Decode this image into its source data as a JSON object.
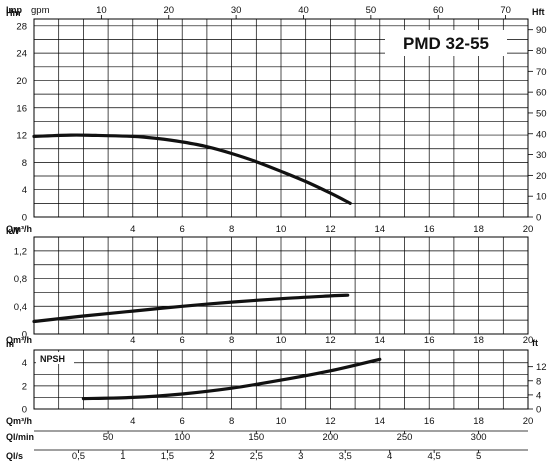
{
  "model": "PMD 32-55",
  "chart_data": [
    {
      "type": "line",
      "panel": "head",
      "ylabel_left": "Hm",
      "ylabel_right": "Hft",
      "xlabel": "Qm³/h",
      "xlim": [
        0,
        20
      ],
      "ylim_left": [
        0,
        29
      ],
      "ylim_right": [
        0,
        95.1
      ],
      "top_axis": {
        "label_unit1": "Imp",
        "label_unit2": "gpm",
        "ticks": [
          10,
          20,
          30,
          40,
          50,
          60,
          70
        ],
        "scale": 3.6662
      },
      "xticks": [
        4,
        6,
        8,
        10,
        12,
        14,
        16,
        18,
        20
      ],
      "yticks_left": [
        0,
        4,
        8,
        12,
        16,
        20,
        24,
        28
      ],
      "yticks_right": [
        0,
        10,
        20,
        30,
        40,
        50,
        60,
        70,
        80,
        90
      ],
      "right_scale": 3.2808,
      "grid": true,
      "series": [
        {
          "x": [
            0,
            1.5,
            2.5,
            4,
            5,
            6,
            7,
            8,
            9,
            10,
            11,
            12,
            12.8
          ],
          "y": [
            11.8,
            12.0,
            11.95,
            11.8,
            11.5,
            11.0,
            10.3,
            9.3,
            8.1,
            6.7,
            5.2,
            3.5,
            2.0
          ]
        }
      ]
    },
    {
      "type": "line",
      "panel": "power",
      "ylabel_left": "kW",
      "xlabel": "Qm³/h",
      "xlim": [
        0,
        20
      ],
      "ylim_left": [
        0,
        1.4
      ],
      "xticks": [
        4,
        6,
        8,
        10,
        12,
        14,
        16,
        18,
        20
      ],
      "yticks_left": [
        "0",
        "0,4",
        "0,8",
        "1,2"
      ],
      "yticks_left_values": [
        0,
        0.4,
        0.8,
        1.2
      ],
      "grid": true,
      "series": [
        {
          "x": [
            0,
            2,
            4,
            6,
            8,
            10,
            12,
            12.7
          ],
          "y": [
            0.18,
            0.26,
            0.33,
            0.4,
            0.46,
            0.51,
            0.55,
            0.56
          ]
        }
      ]
    },
    {
      "type": "line",
      "panel": "npsh",
      "ylabel_left": "m",
      "ylabel_right": "ft",
      "series_label": "NPSH",
      "xlabel": "Qm³/h",
      "xlim": [
        0,
        20
      ],
      "ylim_left": [
        0,
        5.1
      ],
      "ylim_right": [
        0,
        16.73
      ],
      "xticks": [
        4,
        6,
        8,
        10,
        12,
        14,
        16,
        18,
        20
      ],
      "yticks_left": [
        0,
        2,
        4
      ],
      "yticks_right": [
        0,
        4,
        8,
        12
      ],
      "right_scale": 3.2808,
      "grid": true,
      "series": [
        {
          "x": [
            2,
            4,
            6,
            8,
            10,
            12,
            14
          ],
          "y": [
            0.9,
            1.0,
            1.3,
            1.8,
            2.5,
            3.3,
            4.3
          ]
        }
      ]
    }
  ],
  "bottom_axes": [
    {
      "label": "Ql/min",
      "ticks": [
        50,
        100,
        150,
        200,
        250,
        300
      ],
      "per_m3h": 16.6667
    },
    {
      "label": "Ql/s",
      "ticks": [
        "0,5",
        "1",
        "1,5",
        "2",
        "2,5",
        "3",
        "3,5",
        "4",
        "4,5",
        "5"
      ],
      "values": [
        0.5,
        1,
        1.5,
        2,
        2.5,
        3,
        3.5,
        4,
        4.5,
        5
      ],
      "per_m3h": 0.27778
    }
  ]
}
